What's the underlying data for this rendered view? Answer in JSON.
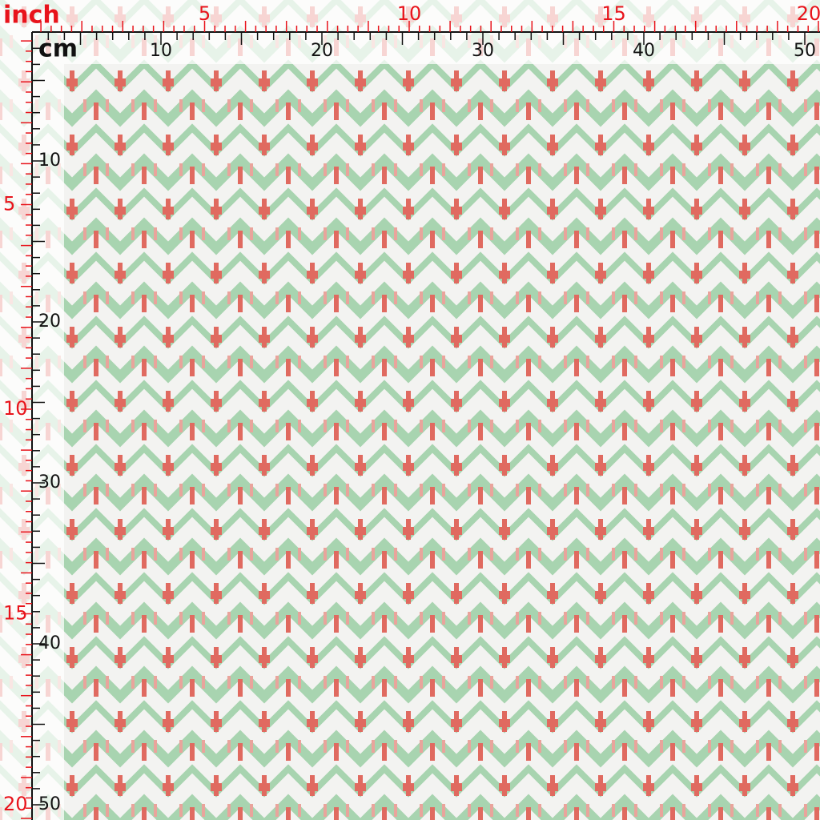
{
  "ruler": {
    "inch_unit": "inch",
    "cm_unit": "cm",
    "top_inch_labels": [
      5,
      10,
      15,
      20
    ],
    "top_cm_labels": [
      10,
      20,
      30,
      40,
      50
    ],
    "left_inch_labels": [
      5,
      10,
      15,
      20
    ],
    "left_cm_labels": [
      10,
      20,
      30,
      40,
      50
    ]
  }
}
